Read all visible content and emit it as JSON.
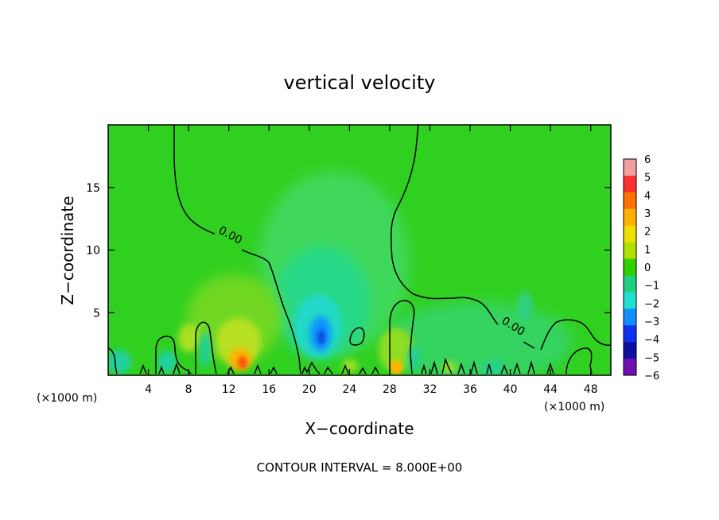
{
  "chart_data": {
    "type": "heatmap",
    "title": "vertical velocity",
    "xlabel": "X−coordinate",
    "ylabel": "Z−coordinate",
    "x_unit_left": "(×1000 m)",
    "x_unit_right": "(×1000 m)",
    "xlim": [
      0,
      50
    ],
    "ylim": [
      0,
      20
    ],
    "xticks": [
      4,
      8,
      12,
      16,
      20,
      24,
      28,
      32,
      36,
      40,
      44,
      48
    ],
    "yticks": [
      5,
      10,
      15
    ],
    "contour_label": "0.00",
    "contour_label_2": "0.00",
    "footer": "CONTOUR INTERVAL = 8.000E+00",
    "colorbar": {
      "values": [
        6,
        5,
        4,
        3,
        2,
        1,
        0,
        -1,
        -2,
        -3,
        -4,
        -5,
        -6
      ],
      "labels": [
        "6",
        "5",
        "4",
        "3",
        "2",
        "1",
        "0",
        "−1",
        "−2",
        "−3",
        "−4",
        "−5",
        "−6"
      ],
      "colors": [
        "#f0a0a0",
        "#ff3030",
        "#ff7000",
        "#ffb000",
        "#f0e000",
        "#b0e000",
        "#30d000",
        "#20d080",
        "#20e0d0",
        "#1090ff",
        "#1030f0",
        "#1010a0",
        "#7010b0"
      ]
    },
    "background_color": "#30d020",
    "features": [
      {
        "name": "updraft-max",
        "x": 13.5,
        "z": 1.2,
        "value": 3
      },
      {
        "name": "updraft-max-2",
        "x": 28.5,
        "z": 0.9,
        "value": 2.5
      },
      {
        "name": "downdraft-min",
        "x": 21.2,
        "z": 3.2,
        "value": -3
      }
    ]
  }
}
